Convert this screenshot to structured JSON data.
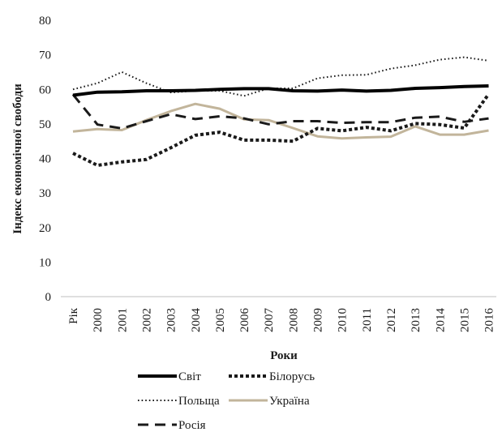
{
  "chart_data": {
    "type": "line",
    "title": "",
    "xlabel": "Роки",
    "ylabel": "Індекс економічної свободи",
    "categories": [
      "Рік",
      "2000",
      "2001",
      "2002",
      "2003",
      "2004",
      "2005",
      "2006",
      "2007",
      "2008",
      "2009",
      "2010",
      "2011",
      "2012",
      "2013",
      "2014",
      "2015",
      "2016"
    ],
    "ylim": [
      0,
      80
    ],
    "yticks": [
      "0",
      "10",
      "20",
      "30",
      "40",
      "50",
      "60",
      "70",
      "80"
    ],
    "grid": false,
    "legend_position": "bottom",
    "series": [
      {
        "name": "Світ",
        "color": "#000000",
        "style": "solid-thick",
        "values": [
          58.3,
          59.2,
          59.3,
          59.6,
          59.6,
          59.7,
          60.0,
          60.2,
          60.2,
          59.6,
          59.5,
          59.8,
          59.5,
          59.7,
          60.3,
          60.5,
          60.8,
          61.0
        ]
      },
      {
        "name": "Білорусь",
        "color": "#1a1a1a",
        "style": "square-dot",
        "values": [
          41.5,
          38.0,
          39.0,
          39.7,
          43.1,
          46.7,
          47.6,
          45.3,
          45.3,
          45.0,
          48.7,
          48.0,
          49.0,
          48.0,
          50.1,
          49.8,
          48.8,
          58.6
        ]
      },
      {
        "name": "Польща",
        "color": "#1a1a1a",
        "style": "dotted",
        "values": [
          60.0,
          61.8,
          65.0,
          61.8,
          59.1,
          59.6,
          59.6,
          58.1,
          60.3,
          60.3,
          63.2,
          64.1,
          64.2,
          66.0,
          67.0,
          68.6,
          69.3,
          68.3
        ]
      },
      {
        "name": "Україна",
        "color": "#c2b59b",
        "style": "solid",
        "values": [
          47.8,
          48.5,
          48.2,
          51.1,
          53.7,
          55.8,
          54.4,
          51.3,
          51.1,
          48.8,
          46.4,
          45.8,
          46.1,
          46.3,
          49.3,
          46.9,
          46.9,
          48.1
        ]
      },
      {
        "name": "Росія",
        "color": "#1a1a1a",
        "style": "dashed",
        "values": [
          58.5,
          49.8,
          48.7,
          50.8,
          52.8,
          51.4,
          52.2,
          51.6,
          49.9,
          50.8,
          50.8,
          50.3,
          50.5,
          50.5,
          51.8,
          52.1,
          50.6,
          51.6
        ]
      }
    ]
  }
}
